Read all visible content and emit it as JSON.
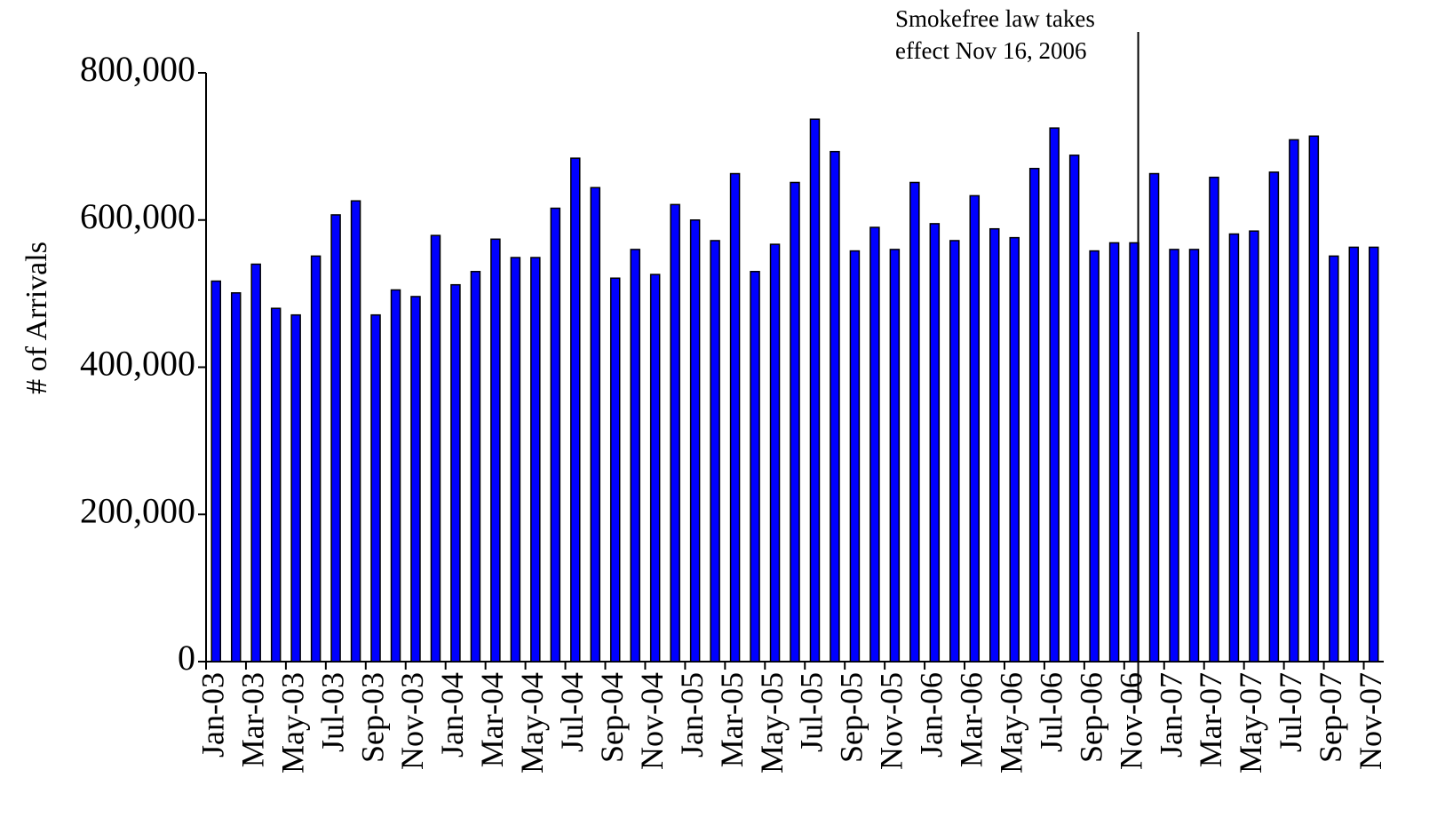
{
  "chart_data": {
    "type": "bar",
    "y_label": "# of Arrivals",
    "annotation": [
      "Smokefree law takes",
      "effect Nov 16, 2006"
    ],
    "categories": [
      "Jan-03",
      null,
      "Mar-03",
      null,
      "May-03",
      null,
      "Jul-03",
      null,
      "Sep-03",
      null,
      "Nov-03",
      null,
      "Jan-04",
      null,
      "Mar-04",
      null,
      "May-04",
      null,
      "Jul-04",
      null,
      "Sep-04",
      null,
      "Nov-04",
      null,
      "Jan-05",
      null,
      "Mar-05",
      null,
      "May-05",
      null,
      "Jul-05",
      null,
      "Sep-05",
      null,
      "Nov-05",
      null,
      "Jan-06",
      null,
      "Mar-06",
      null,
      "May-06",
      null,
      "Jul-06",
      null,
      "Sep-06",
      null,
      "Nov-06",
      null,
      "Jan-07",
      null,
      "Mar-07",
      null,
      "May-07",
      null,
      "Jul-07",
      null,
      "Sep-07",
      null,
      "Nov-07"
    ],
    "values": [
      517000,
      501000,
      540000,
      480000,
      471000,
      551000,
      607000,
      626000,
      471000,
      505000,
      496000,
      579000,
      512000,
      530000,
      574000,
      549000,
      549000,
      616000,
      684000,
      644000,
      521000,
      560000,
      526000,
      621000,
      600000,
      572000,
      663000,
      530000,
      567000,
      651000,
      737000,
      693000,
      558000,
      590000,
      560000,
      651000,
      595000,
      572000,
      633000,
      588000,
      576000,
      670000,
      725000,
      688000,
      558000,
      569000,
      569000,
      663000,
      560000,
      560000,
      658000,
      581000,
      585000,
      665000,
      709000,
      714000,
      551000,
      563000,
      563000
    ],
    "color": "#0000ff",
    "ylim": [
      0,
      800000
    ],
    "yticks": [
      0,
      {
        "value": 200000,
        "label": "200,000"
      },
      {
        "value": 400000,
        "label": "400,000"
      },
      {
        "value": 600000,
        "label": "600,000"
      },
      {
        "value": 800000,
        "label": "800,000"
      }
    ],
    "grid": false
  }
}
